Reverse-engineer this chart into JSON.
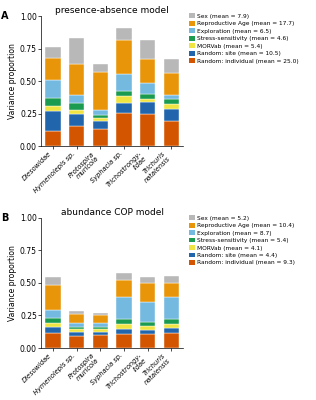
{
  "panel_A": {
    "title": "presence-absence model",
    "categories": [
      "Diesowidae",
      "Hymenolepis sp.",
      "Protospira\nmuricola",
      "Syphacia sp.",
      "Trichostrongy-\nlidae",
      "Trichuris\nnatalensis"
    ],
    "legend_labels_A": [
      "Sex (mean = 7.9)",
      "Reproductive Age (mean = 17.7)",
      "Exploration (mean = 6.5)",
      "Stress-sensitivity (mean = 4.6)",
      "MORVab (mean = 5.4)",
      "Random: site (mean = 10.5)",
      "Random: individual (mean = 25.0)"
    ],
    "data": {
      "random_individual": [
        0.115,
        0.155,
        0.13,
        0.255,
        0.245,
        0.195
      ],
      "random_site": [
        0.155,
        0.09,
        0.065,
        0.075,
        0.095,
        0.09
      ],
      "morvab": [
        0.042,
        0.035,
        0.022,
        0.055,
        0.025,
        0.04
      ],
      "stress": [
        0.055,
        0.05,
        0.022,
        0.04,
        0.038,
        0.038
      ],
      "exploration": [
        0.14,
        0.06,
        0.038,
        0.13,
        0.08,
        0.033
      ],
      "repro_age": [
        0.17,
        0.24,
        0.29,
        0.26,
        0.19,
        0.165
      ],
      "sex": [
        0.083,
        0.2,
        0.065,
        0.09,
        0.145,
        0.11
      ]
    }
  },
  "panel_B": {
    "title": "abundance COP model",
    "categories": [
      "Diesowidae",
      "Hymenolepis sp.",
      "Protospira\nmuricola",
      "Syphacia sp.",
      "Trichostrongy-\nlidae",
      "Trichuris\nnatalensis"
    ],
    "legend_labels_B": [
      "Sex (mean = 5.2)",
      "Reproductive Age (mean = 10.4)",
      "Exploration (mean = 8.7)",
      "Stress-sensitivity (mean = 5.4)",
      "MORVab (mean = 4.1)",
      "Random: site (mean = 4.4)",
      "Random: individual (mean = 9.3)"
    ],
    "data": {
      "random_individual": [
        0.115,
        0.095,
        0.1,
        0.11,
        0.11,
        0.115
      ],
      "random_site": [
        0.05,
        0.03,
        0.025,
        0.033,
        0.03,
        0.038
      ],
      "morvab": [
        0.028,
        0.018,
        0.018,
        0.038,
        0.028,
        0.032
      ],
      "stress": [
        0.038,
        0.022,
        0.02,
        0.038,
        0.033,
        0.038
      ],
      "exploration": [
        0.06,
        0.028,
        0.028,
        0.17,
        0.155,
        0.165
      ],
      "repro_age": [
        0.195,
        0.07,
        0.062,
        0.13,
        0.14,
        0.115
      ],
      "sex": [
        0.06,
        0.018,
        0.018,
        0.058,
        0.048,
        0.052
      ]
    }
  },
  "colors": {
    "random_individual": "#d45500",
    "random_site": "#2166ac",
    "morvab": "#f0e442",
    "stress": "#1a9b50",
    "exploration": "#74b9e0",
    "repro_age": "#e8950a",
    "sex": "#b8b8b8"
  },
  "ylabel": "Variance proportion",
  "ylim": [
    0,
    1.0
  ],
  "background_color": "#ffffff"
}
